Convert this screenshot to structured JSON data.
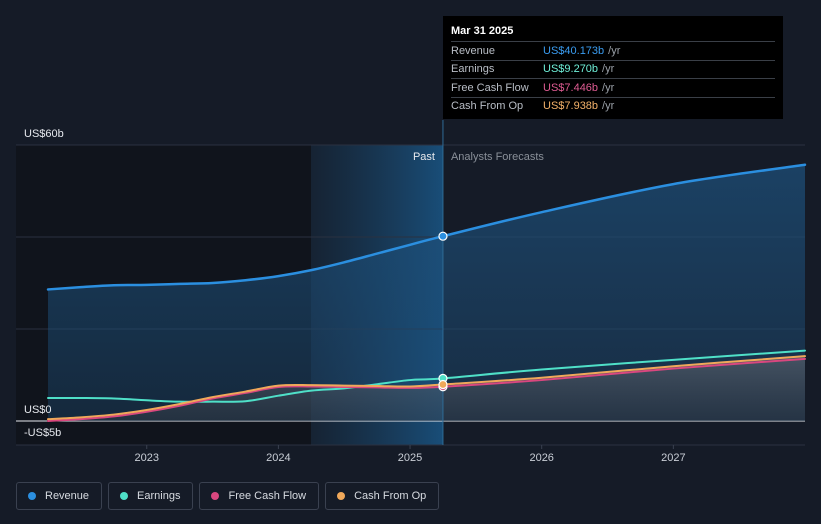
{
  "chart_data": {
    "type": "line",
    "unit_prefix": "US$",
    "y_ticks": [
      {
        "value": 60,
        "label": "US$60b"
      },
      {
        "value": 0,
        "label": "US$0"
      },
      {
        "value": -5,
        "label": "-US$5b"
      }
    ],
    "ylim": [
      -5,
      60
    ],
    "xlim": [
      2022.25,
      2028.0
    ],
    "x_ticks": [
      2023,
      2024,
      2025,
      2026,
      2027
    ],
    "x_tick_labels": [
      "2023",
      "2024",
      "2025",
      "2026",
      "2027"
    ],
    "divider_x": 2025.25,
    "past_label": "Past",
    "forecast_label": "Analysts Forecasts",
    "grid": true,
    "series": [
      {
        "name": "Revenue",
        "color": "#2b8fe0",
        "x": [
          2022.25,
          2022.5,
          2022.75,
          2023.0,
          2023.25,
          2023.5,
          2023.75,
          2024.0,
          2024.25,
          2024.5,
          2024.75,
          2025.0,
          2025.25,
          2026.0,
          2027.0,
          2028.0
        ],
        "y": [
          28.6,
          29.1,
          29.5,
          29.6,
          29.8,
          30.0,
          30.6,
          31.5,
          32.8,
          34.5,
          36.4,
          38.3,
          40.173,
          45.4,
          51.5,
          55.7
        ]
      },
      {
        "name": "Earnings",
        "color": "#4fe0c8",
        "x": [
          2022.25,
          2022.5,
          2022.75,
          2023.0,
          2023.25,
          2023.5,
          2023.75,
          2024.0,
          2024.25,
          2024.5,
          2024.75,
          2025.0,
          2025.25,
          2026.0,
          2027.0,
          2028.0
        ],
        "y": [
          5.0,
          5.0,
          4.9,
          4.5,
          4.2,
          4.2,
          4.3,
          5.5,
          6.6,
          7.1,
          8.0,
          8.9,
          9.27,
          11.2,
          13.3,
          15.3
        ]
      },
      {
        "name": "Free Cash Flow",
        "color": "#d9477f",
        "x": [
          2022.25,
          2022.5,
          2022.75,
          2023.0,
          2023.25,
          2023.5,
          2023.75,
          2024.0,
          2024.25,
          2024.5,
          2024.75,
          2025.0,
          2025.25,
          2026.0,
          2027.0,
          2028.0
        ],
        "y": [
          0.0,
          0.4,
          1.0,
          2.0,
          3.3,
          4.9,
          6.1,
          7.4,
          7.5,
          7.4,
          7.3,
          7.2,
          7.446,
          8.9,
          11.4,
          13.5
        ]
      },
      {
        "name": "Cash From Op",
        "color": "#f0a85a",
        "x": [
          2022.25,
          2022.5,
          2022.75,
          2023.0,
          2023.25,
          2023.5,
          2023.75,
          2024.0,
          2024.25,
          2024.5,
          2024.75,
          2025.0,
          2025.25,
          2026.0,
          2027.0,
          2028.0
        ],
        "y": [
          0.4,
          0.8,
          1.4,
          2.4,
          3.7,
          5.2,
          6.4,
          7.7,
          7.8,
          7.7,
          7.6,
          7.5,
          7.938,
          9.4,
          11.9,
          14.1
        ]
      }
    ]
  },
  "tooltip": {
    "date": "Mar 31 2025",
    "unit": "/yr",
    "rows": [
      {
        "name": "Revenue",
        "value": "US$40.173b",
        "color": "#3a9cf0"
      },
      {
        "name": "Earnings",
        "value": "US$9.270b",
        "color": "#6ff0d9"
      },
      {
        "name": "Free Cash Flow",
        "value": "US$7.446b",
        "color": "#e05c93"
      },
      {
        "name": "Cash From Op",
        "value": "US$7.938b",
        "color": "#f4b26a"
      }
    ]
  },
  "legend": [
    {
      "label": "Revenue",
      "color": "#2b8fe0"
    },
    {
      "label": "Earnings",
      "color": "#4fe0c8"
    },
    {
      "label": "Free Cash Flow",
      "color": "#d9477f"
    },
    {
      "label": "Cash From Op",
      "color": "#f0a85a"
    }
  ]
}
